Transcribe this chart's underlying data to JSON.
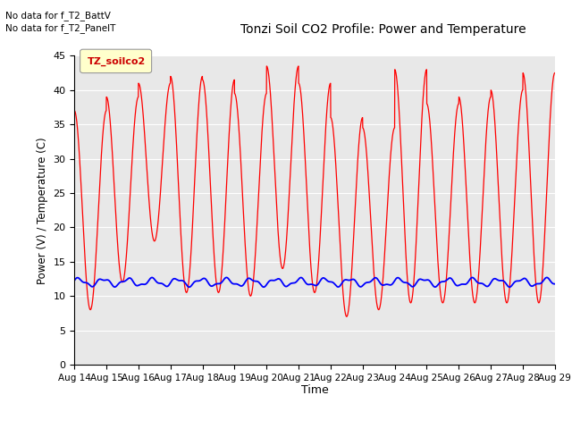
{
  "title": "Tonzi Soil CO2 Profile: Power and Temperature",
  "ylabel": "Power (V) / Temperature (C)",
  "xlabel": "Time",
  "top_left_text_line1": "No data for f_T2_BattV",
  "top_left_text_line2": "No data for f_T2_PanelT",
  "legend_label": "TZ_soilco2",
  "ylim": [
    0,
    45
  ],
  "yticks": [
    0,
    5,
    10,
    15,
    20,
    25,
    30,
    35,
    40,
    45
  ],
  "xtick_labels": [
    "Aug 14",
    "Aug 15",
    "Aug 16",
    "Aug 17",
    "Aug 18",
    "Aug 19",
    "Aug 20",
    "Aug 21",
    "Aug 22",
    "Aug 23",
    "Aug 24",
    "Aug 25",
    "Aug 26",
    "Aug 27",
    "Aug 28",
    "Aug 29"
  ],
  "plot_bg_color": "#e8e8e8",
  "red_line_color": "#ff0000",
  "blue_line_color": "#0000ff",
  "legend_bg_color": "#ffffcc",
  "legend_text_color": "#cc0000",
  "grid_color": "#ffffff",
  "peak_values": [
    37,
    39,
    41,
    42,
    41.5,
    39.5,
    43.5,
    41,
    36,
    34.5,
    43,
    38,
    39,
    40,
    42.5
  ],
  "trough_values": [
    8,
    12,
    18,
    10.5,
    10.5,
    10,
    14,
    10.5,
    7,
    8,
    9,
    9,
    9,
    9,
    9
  ],
  "blue_base": 12.0,
  "blue_amp1": 0.5,
  "blue_amp2": 0.2
}
